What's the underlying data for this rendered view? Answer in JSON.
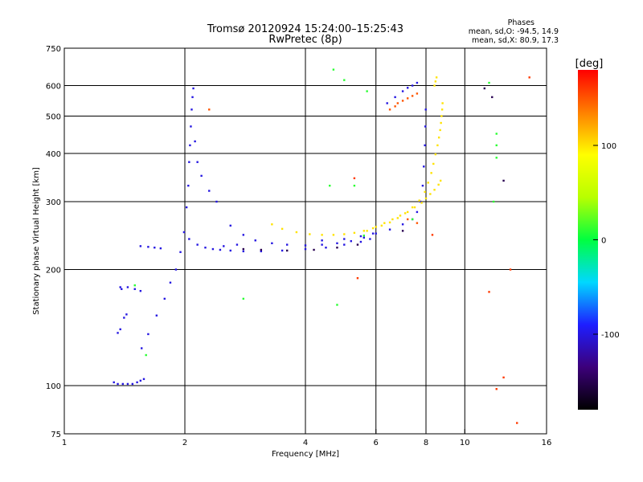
{
  "chart_data": {
    "type": "scatter",
    "title": "Tromsø 20120924 15:24:00–15:25:43",
    "subtitle": "RwPretec (8p)",
    "xlabel": "Frequency [MHz]",
    "ylabel": "Stationary phase Virtual Height [km]",
    "x_scale": "log",
    "y_scale": "log",
    "xlim": [
      1,
      16
    ],
    "ylim": [
      75,
      750
    ],
    "x_ticks": [
      1,
      2,
      4,
      6,
      8,
      10,
      16
    ],
    "x_tick_labels": [
      "1",
      "2",
      "4",
      "6",
      "8",
      "10",
      "16"
    ],
    "y_ticks": [
      75,
      100,
      200,
      300,
      400,
      500,
      600,
      750
    ],
    "y_tick_labels": [
      "75",
      "100",
      "200",
      "300",
      "400",
      "500",
      "600",
      "750"
    ],
    "x_grid": [
      2,
      4,
      6,
      8,
      10
    ],
    "y_grid": [
      100,
      200,
      300,
      400,
      500,
      600
    ],
    "phase_header": "Phases",
    "phase_stats": [
      "mean, sd,O:  -94.5, 14.9",
      "mean, sd,X:  80.9, 17.3"
    ],
    "colorbar": {
      "unit": "[deg]",
      "ticks": [
        100,
        0,
        -100
      ],
      "tick_labels": [
        "100",
        "0",
        "-100"
      ],
      "range": [
        -180,
        180
      ],
      "colors": [
        "#000000",
        "#3c007a",
        "#1e1eff",
        "#00d8ff",
        "#00ff40",
        "#b8ff00",
        "#ffff00",
        "#ff8000",
        "#ff0000"
      ]
    },
    "series": [
      {
        "color_phase": -100,
        "x": [
          1.33,
          1.36,
          1.4,
          1.44,
          1.48,
          1.52,
          1.55,
          1.58,
          1.36,
          1.38,
          1.41,
          1.43,
          1.44,
          1.5,
          1.55,
          1.38,
          1.39,
          1.55,
          1.62,
          1.68,
          1.74,
          1.56,
          1.62,
          1.7,
          1.78,
          1.84,
          1.9,
          1.95,
          1.99,
          2.02,
          2.04,
          2.05,
          2.06,
          2.07,
          2.08,
          2.09,
          2.1,
          2.12,
          2.15,
          2.2,
          2.3,
          2.4,
          2.6,
          2.8,
          3.0,
          3.3,
          3.6,
          4.0,
          4.4,
          4.8,
          5.2,
          5.6,
          5.9,
          2.05,
          2.15,
          2.25,
          2.35,
          2.45,
          2.6,
          2.8,
          3.1,
          3.5,
          4.0,
          4.5,
          5.0,
          5.5,
          5.8,
          4.4,
          5.0,
          5.5,
          6.0,
          6.5,
          7.0,
          7.4,
          7.6,
          7.75,
          7.85,
          7.9,
          7.95,
          7.97,
          7.99,
          6.4,
          6.7,
          7.0,
          7.2,
          7.4,
          7.6,
          2.5,
          2.7
        ],
        "y": [
          102,
          101,
          101,
          101,
          101,
          102,
          103,
          104,
          137,
          140,
          150,
          153,
          180,
          178,
          176,
          180,
          178,
          230,
          229,
          228,
          227,
          125,
          136,
          152,
          168,
          185,
          200,
          222,
          250,
          290,
          330,
          380,
          420,
          470,
          520,
          560,
          590,
          430,
          380,
          350,
          320,
          300,
          260,
          246,
          238,
          234,
          232,
          231,
          232,
          234,
          237,
          242,
          248,
          240,
          232,
          228,
          226,
          225,
          224,
          223,
          223,
          224,
          226,
          228,
          232,
          236,
          240,
          238,
          240,
          244,
          248,
          254,
          262,
          270,
          282,
          300,
          330,
          370,
          420,
          470,
          520,
          540,
          560,
          580,
          592,
          600,
          610,
          230,
          232
        ]
      },
      {
        "color_phase": 100,
        "x": [
          3.3,
          3.5,
          3.8,
          4.1,
          4.4,
          4.7,
          5.0,
          5.3,
          5.6,
          5.9,
          6.2,
          6.5,
          6.8,
          7.1,
          7.4,
          7.7,
          7.95,
          8.1,
          8.25,
          8.35,
          8.45,
          8.55,
          8.62,
          8.68,
          8.72,
          8.75,
          8.78,
          8.8,
          5.7,
          6.0,
          6.3,
          6.6,
          6.9,
          7.2,
          7.5,
          7.8,
          8.0,
          8.2,
          8.4,
          8.6,
          8.7,
          8.4,
          8.45,
          8.5
        ],
        "y": [
          262,
          255,
          250,
          247,
          246,
          246,
          247,
          249,
          252,
          256,
          260,
          265,
          272,
          280,
          290,
          302,
          318,
          336,
          356,
          376,
          398,
          420,
          440,
          460,
          480,
          500,
          520,
          540,
          252,
          258,
          264,
          270,
          276,
          282,
          290,
          298,
          306,
          314,
          322,
          332,
          340,
          600,
          615,
          630
        ]
      },
      {
        "color_phase": 150,
        "x": [
          6.8,
          7.0,
          7.2,
          7.4,
          7.6,
          6.5,
          6.7,
          2.3,
          7.2,
          7.6
        ],
        "y": [
          540,
          548,
          556,
          564,
          572,
          520,
          530,
          520,
          270,
          264
        ]
      },
      {
        "color_phase": -150,
        "x": [
          2.8,
          3.1,
          3.6,
          4.2,
          4.8,
          5.4,
          7.0,
          12.5,
          11.2,
          11.7
        ],
        "y": [
          226,
          225,
          224,
          225,
          228,
          232,
          252,
          340,
          590,
          560
        ]
      },
      {
        "color_phase": 10,
        "x": [
          11.5,
          12.0,
          12.0,
          12.0,
          11.8,
          4.7,
          5.0,
          4.6,
          5.7,
          1.5,
          1.6,
          2.8,
          5.3,
          4.8,
          5.6,
          7.4
        ],
        "y": [
          610,
          450,
          420,
          390,
          300,
          660,
          620,
          330,
          580,
          182,
          120,
          168,
          330,
          162,
          245,
          270
        ]
      },
      {
        "color_phase": 160,
        "x": [
          12.5,
          13.5,
          12.0,
          11.5,
          13.0,
          14.5,
          5.3,
          8.3,
          5.4
        ],
        "y": [
          105,
          80,
          98,
          175,
          200,
          630,
          345,
          246,
          190
        ]
      }
    ]
  }
}
